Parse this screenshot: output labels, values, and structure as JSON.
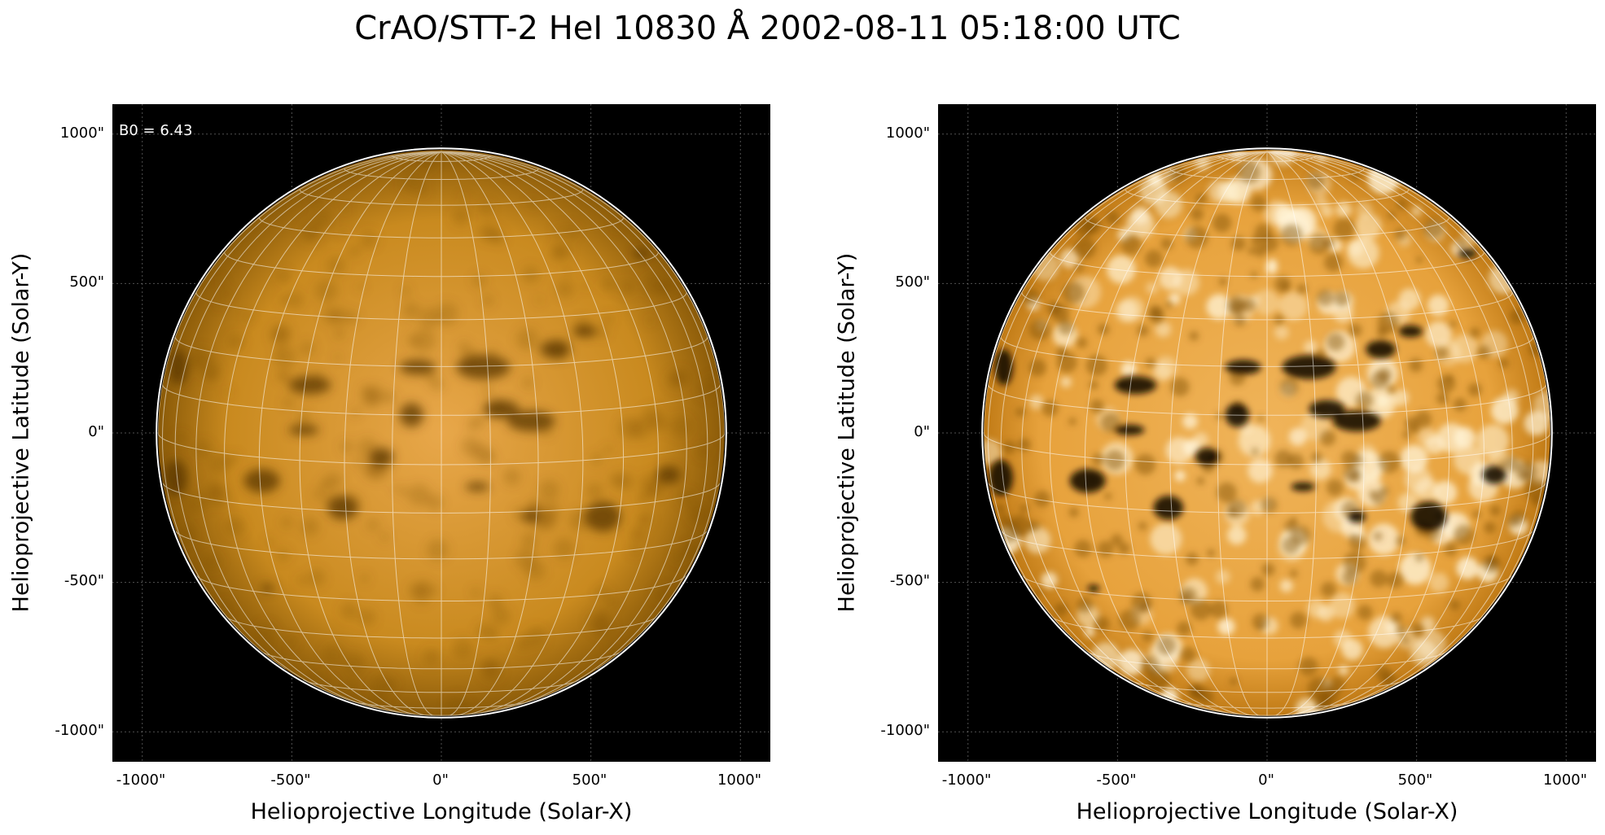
{
  "title": "CrAO/STT-2 HeI 10830 Å 2002-08-11 05:18:00 UTC",
  "colors": {
    "background": "#000000",
    "disk_light": "#e8a74a",
    "disk_mid": "#c98a1f",
    "disk_dark": "#5a3600",
    "grid": "#ffffff",
    "limb": "#ffffff"
  },
  "panels": [
    {
      "id": "left",
      "annotation": "B0 = 6.43",
      "xlabel": "Helioprojective Longitude (Solar-X)",
      "ylabel": "Helioprojective Latitude (Solar-Y)",
      "xticks": [
        "-1000\"",
        "-500\"",
        "0\"",
        "500\"",
        "1000\""
      ],
      "yticks": [
        "1000\"",
        "500\"",
        "0\"",
        "-500\"",
        "-1000\""
      ],
      "contrast": "normal"
    },
    {
      "id": "right",
      "annotation": "",
      "xlabel": "Helioprojective Longitude (Solar-X)",
      "ylabel": "Helioprojective Latitude (Solar-Y)",
      "xticks": [
        "-1000\"",
        "-500\"",
        "0\"",
        "500\"",
        "1000\""
      ],
      "yticks": [
        "1000\"",
        "500\"",
        "0\"",
        "-500\"",
        "-1000\""
      ],
      "contrast": "enhanced"
    }
  ],
  "axes": {
    "x_range_arcsec": [
      -1100,
      1100
    ],
    "y_range_arcsec": [
      -1100,
      1100
    ],
    "tick_values_arcsec": [
      -1000,
      -500,
      0,
      500,
      1000
    ],
    "solar_radius_arcsec": 947,
    "b0_deg": 6.43
  }
}
